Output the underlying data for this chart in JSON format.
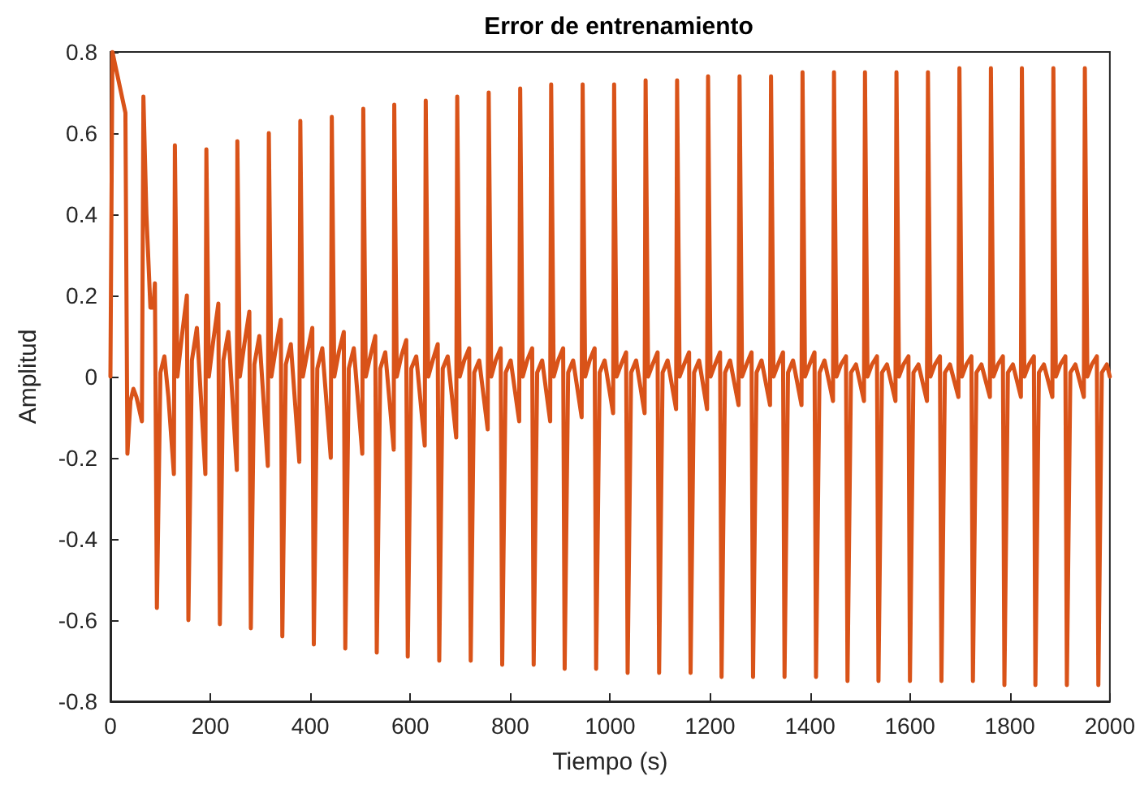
{
  "chart_data": {
    "type": "line",
    "title": "Error de entrenamiento",
    "xlabel": "Tiempo (s)",
    "ylabel": "Amplitud",
    "xlim": [
      0,
      2000
    ],
    "xticks": [
      0,
      200,
      400,
      600,
      800,
      1000,
      1200,
      1400,
      1600,
      1800,
      2000
    ],
    "ylim": [
      -0.8,
      0.8
    ],
    "yticks": [
      -0.8,
      -0.6,
      -0.4,
      -0.2,
      0,
      0.2,
      0.4,
      0.6,
      0.8
    ],
    "grid": false,
    "marker": "none",
    "line_style": "solid",
    "series": [
      {
        "color": "#d95319",
        "x": [
          0,
          4,
          30,
          34,
          40,
          46,
          52,
          63,
          66,
          72,
          80,
          86,
          89,
          93,
          100,
          108,
          116,
          127,
          129,
          134,
          143,
          153,
          156,
          163,
          173,
          190,
          192,
          197,
          206,
          216,
          219,
          226,
          236,
          253,
          254,
          259,
          268,
          278,
          281,
          288,
          298,
          315,
          317,
          322,
          331,
          341,
          344,
          351,
          361,
          378,
          380,
          385,
          394,
          404,
          407,
          414,
          424,
          441,
          443,
          448,
          457,
          467,
          470,
          477,
          487,
          504,
          506,
          511,
          520,
          530,
          533,
          540,
          550,
          567,
          568,
          573,
          582,
          592,
          595,
          602,
          612,
          629,
          631,
          636,
          645,
          655,
          658,
          665,
          675,
          692,
          694,
          699,
          708,
          718,
          721,
          728,
          738,
          755,
          757,
          762,
          771,
          781,
          784,
          791,
          801,
          818,
          820,
          825,
          834,
          844,
          847,
          854,
          864,
          880,
          882,
          887,
          896,
          906,
          909,
          916,
          926,
          943,
          945,
          950,
          959,
          969,
          972,
          979,
          989,
          1006,
          1008,
          1013,
          1022,
          1032,
          1035,
          1042,
          1052,
          1069,
          1071,
          1076,
          1085,
          1095,
          1098,
          1105,
          1115,
          1132,
          1134,
          1139,
          1148,
          1158,
          1161,
          1168,
          1178,
          1194,
          1196,
          1201,
          1210,
          1220,
          1223,
          1230,
          1240,
          1257,
          1259,
          1264,
          1273,
          1283,
          1286,
          1293,
          1303,
          1320,
          1322,
          1327,
          1336,
          1346,
          1349,
          1356,
          1366,
          1383,
          1385,
          1390,
          1399,
          1409,
          1412,
          1419,
          1429,
          1446,
          1448,
          1453,
          1462,
          1472,
          1475,
          1482,
          1492,
          1508,
          1510,
          1515,
          1524,
          1534,
          1537,
          1544,
          1554,
          1571,
          1573,
          1578,
          1587,
          1597,
          1600,
          1607,
          1617,
          1634,
          1636,
          1641,
          1650,
          1660,
          1663,
          1670,
          1680,
          1697,
          1699,
          1704,
          1713,
          1723,
          1726,
          1733,
          1743,
          1760,
          1762,
          1767,
          1776,
          1786,
          1789,
          1796,
          1806,
          1822,
          1824,
          1829,
          1838,
          1848,
          1851,
          1858,
          1868,
          1885,
          1887,
          1892,
          1901,
          1911,
          1914,
          1921,
          1931,
          1948,
          1950,
          1955,
          1964,
          1974,
          1977,
          1984,
          1994,
          2000
        ],
        "values": [
          0,
          0.8,
          0.65,
          -0.19,
          -0.06,
          -0.03,
          -0.05,
          -0.11,
          0.69,
          0.4,
          0.17,
          0.17,
          0.23,
          -0.57,
          0.01,
          0.05,
          -0.05,
          -0.24,
          0.57,
          0,
          0.1,
          0.2,
          -0.6,
          0.04,
          0.12,
          -0.24,
          0.56,
          0,
          0.09,
          0.18,
          -0.61,
          0.04,
          0.11,
          -0.23,
          0.58,
          0,
          0.08,
          0.16,
          -0.62,
          0.03,
          0.1,
          -0.22,
          0.6,
          0,
          0.07,
          0.14,
          -0.64,
          0.03,
          0.08,
          -0.21,
          0.63,
          0,
          0.06,
          0.12,
          -0.66,
          0.02,
          0.07,
          -0.2,
          0.64,
          0,
          0.06,
          0.11,
          -0.67,
          0.02,
          0.07,
          -0.19,
          0.66,
          0,
          0.05,
          0.1,
          -0.68,
          0.02,
          0.06,
          -0.18,
          0.67,
          0,
          0.05,
          0.09,
          -0.69,
          0.02,
          0.05,
          -0.17,
          0.68,
          0,
          0.04,
          0.08,
          -0.7,
          0.02,
          0.05,
          -0.15,
          0.69,
          0,
          0.04,
          0.07,
          -0.7,
          0.01,
          0.04,
          -0.13,
          0.7,
          0,
          0.04,
          0.07,
          -0.71,
          0.01,
          0.04,
          -0.11,
          0.71,
          0,
          0.04,
          0.07,
          -0.71,
          0.01,
          0.04,
          -0.11,
          0.72,
          0,
          0.04,
          0.07,
          -0.72,
          0.01,
          0.04,
          -0.1,
          0.72,
          0,
          0.04,
          0.07,
          -0.72,
          0.01,
          0.04,
          -0.09,
          0.72,
          0,
          0.03,
          0.06,
          -0.73,
          0.01,
          0.04,
          -0.09,
          0.73,
          0,
          0.03,
          0.06,
          -0.73,
          0.01,
          0.04,
          -0.08,
          0.73,
          0,
          0.03,
          0.06,
          -0.73,
          0.01,
          0.04,
          -0.08,
          0.74,
          0,
          0.03,
          0.06,
          -0.74,
          0.01,
          0.04,
          -0.07,
          0.74,
          0,
          0.03,
          0.06,
          -0.74,
          0.01,
          0.04,
          -0.07,
          0.74,
          0,
          0.03,
          0.06,
          -0.74,
          0.01,
          0.04,
          -0.07,
          0.75,
          0,
          0.03,
          0.06,
          -0.74,
          0.01,
          0.04,
          -0.06,
          0.75,
          0,
          0.03,
          0.05,
          -0.75,
          0.01,
          0.03,
          -0.06,
          0.75,
          0,
          0.03,
          0.05,
          -0.75,
          0.01,
          0.03,
          -0.06,
          0.75,
          0,
          0.03,
          0.05,
          -0.75,
          0.01,
          0.03,
          -0.06,
          0.75,
          0,
          0.03,
          0.05,
          -0.75,
          0.01,
          0.03,
          -0.05,
          0.76,
          0,
          0.03,
          0.05,
          -0.75,
          0.01,
          0.03,
          -0.05,
          0.76,
          0,
          0.03,
          0.05,
          -0.76,
          0.01,
          0.03,
          -0.05,
          0.76,
          0,
          0.03,
          0.05,
          -0.76,
          0.01,
          0.03,
          -0.05,
          0.76,
          0,
          0.03,
          0.05,
          -0.76,
          0.01,
          0.03,
          -0.05,
          0.76,
          0,
          0.03,
          0.05,
          -0.76,
          0.01,
          0.03,
          0
        ]
      }
    ]
  }
}
